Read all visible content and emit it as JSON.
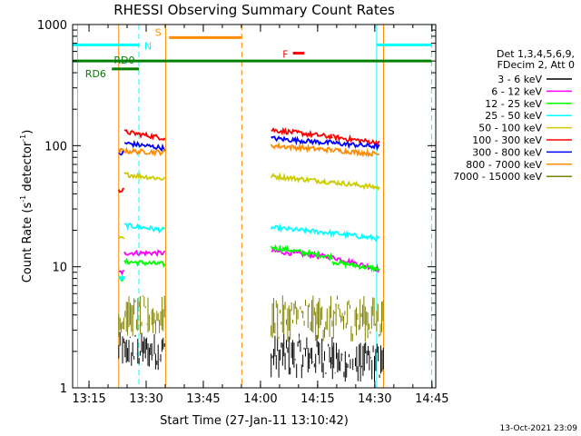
{
  "chart_data": {
    "type": "line",
    "title": "RHESSI Observing Summary Count Rates",
    "xlabel": "Start Time (27-Jan-11 13:10:42)",
    "ylabel_main": "Count Rate (s",
    "ylabel_sup1": "-1",
    "ylabel_mid": " detector",
    "ylabel_sup2": "-1",
    "ylabel_end": ")",
    "xlim_min": [
      10.7,
      106
    ],
    "y_scale": "log",
    "ylim": [
      1,
      1000
    ],
    "x_ticks": [
      {
        "min": 15,
        "label": "13:15"
      },
      {
        "min": 30,
        "label": "13:30"
      },
      {
        "min": 45,
        "label": "13:45"
      },
      {
        "min": 60,
        "label": "14:00"
      },
      {
        "min": 75,
        "label": "14:15"
      },
      {
        "min": 90,
        "label": "14:30"
      },
      {
        "min": 105,
        "label": "14:45"
      }
    ],
    "y_ticks": [
      {
        "value": 1,
        "label": "1"
      },
      {
        "value": 10,
        "label": "10"
      },
      {
        "value": 100,
        "label": "100"
      },
      {
        "value": 1000,
        "label": "1000"
      }
    ],
    "legend_header": [
      "Det 1,3,4,5,6,9,",
      "FDecim 2, Att 0"
    ],
    "series": [
      {
        "name": "3 - 6 keV",
        "color": "#000000",
        "kind": "noise",
        "segments": [
          [
            22.8,
            35.1,
            1.4,
            2.9
          ],
          [
            62.8,
            78.9,
            1.2,
            2.8
          ],
          [
            78.9,
            92.3,
            1.1,
            2.4
          ]
        ]
      },
      {
        "name": "6 - 12 keV",
        "color": "#ff00ff",
        "kind": "line",
        "segments": [
          [
            22.8,
            24.3,
            9,
            9
          ],
          [
            24.3,
            35.1,
            13,
            13
          ],
          [
            62.8,
            78.9,
            13.5,
            12
          ],
          [
            78.9,
            91.3,
            12,
            9.5
          ]
        ]
      },
      {
        "name": "12 - 25 keV",
        "color": "#00ff00",
        "kind": "line",
        "segments": [
          [
            22.8,
            24.3,
            8,
            8
          ],
          [
            24.3,
            35.1,
            11,
            10.5
          ],
          [
            62.8,
            78.9,
            14.5,
            12
          ],
          [
            78.9,
            91.3,
            11,
            9.5
          ]
        ]
      },
      {
        "name": "25 - 50 keV",
        "color": "#00ffff",
        "kind": "line",
        "segments": [
          [
            22.8,
            24.3,
            8,
            8
          ],
          [
            24.3,
            35.1,
            22,
            20
          ],
          [
            62.8,
            78.9,
            21,
            19
          ],
          [
            78.9,
            91.3,
            19,
            17
          ]
        ]
      },
      {
        "name": "50 - 100 keV",
        "color": "#cccc00",
        "kind": "line",
        "segments": [
          [
            22.8,
            24.3,
            17,
            17
          ],
          [
            24.3,
            35.1,
            58,
            53
          ],
          [
            62.8,
            78.9,
            56,
            50
          ],
          [
            78.9,
            91.3,
            50,
            45
          ]
        ]
      },
      {
        "name": "100 - 300 keV",
        "color": "#ff0000",
        "kind": "line",
        "segments": [
          [
            22.8,
            24.3,
            42,
            45
          ],
          [
            24.3,
            35.1,
            130,
            115
          ],
          [
            62.8,
            78.9,
            135,
            118
          ],
          [
            78.9,
            91.3,
            118,
            105
          ]
        ]
      },
      {
        "name": "300 - 800 keV",
        "color": "#0000ff",
        "kind": "line",
        "segments": [
          [
            22.8,
            24.3,
            85,
            88
          ],
          [
            24.3,
            35.1,
            105,
            95
          ],
          [
            62.8,
            78.9,
            115,
            105
          ],
          [
            78.9,
            91.3,
            105,
            98
          ]
        ]
      },
      {
        "name": "800 - 7000 keV",
        "color": "#ff8c00",
        "kind": "line",
        "segments": [
          [
            22.8,
            24.3,
            90,
            92
          ],
          [
            24.3,
            35.1,
            90,
            88
          ],
          [
            62.8,
            78.9,
            100,
            92
          ],
          [
            78.9,
            91.3,
            92,
            85
          ]
        ]
      },
      {
        "name": "7000 - 15000 keV",
        "color": "#808000",
        "kind": "noise",
        "segments": [
          [
            22.8,
            35.1,
            2.6,
            5.8
          ],
          [
            62.8,
            92.3,
            2.4,
            5.8
          ]
        ]
      }
    ],
    "flags": [
      {
        "label": "N",
        "color": "#00ffff",
        "y": 680,
        "segments": [
          [
            10.7,
            28.1
          ],
          [
            90.5,
            104.9
          ]
        ]
      },
      {
        "label": "S",
        "color": "#ff8c00",
        "y": 780,
        "segments": [
          [
            36,
            55
          ]
        ]
      },
      {
        "label": "F",
        "color": "#ff0000",
        "y": 580,
        "segments": [
          [
            68.5,
            71.5
          ]
        ]
      },
      {
        "label": "RD0",
        "color": "#008000",
        "y": 500,
        "segments": [
          [
            10.7,
            104.9
          ]
        ]
      },
      {
        "label": "RD6",
        "color": "#008000",
        "y": 430,
        "segments": [
          [
            21,
            28.1
          ]
        ]
      }
    ],
    "vlines": [
      {
        "min": 12.0,
        "color": "#00ffff",
        "style": "solid"
      },
      {
        "min": 28.1,
        "color": "#00ffff",
        "style": "dashed"
      },
      {
        "min": 90.5,
        "color": "#00ffff",
        "style": "solid"
      },
      {
        "min": 104.9,
        "color": "#00ffff",
        "style": "dashed"
      },
      {
        "min": 22.8,
        "color": "#ff8c00",
        "style": "solid"
      },
      {
        "min": 92.3,
        "color": "#ff8c00",
        "style": "solid"
      },
      {
        "min": 35.1,
        "color": "#ff8c00",
        "style": "solid"
      },
      {
        "min": 55.1,
        "color": "#ff8c00",
        "style": "dashed"
      }
    ],
    "timestamp": "13-Oct-2021 23:09"
  }
}
